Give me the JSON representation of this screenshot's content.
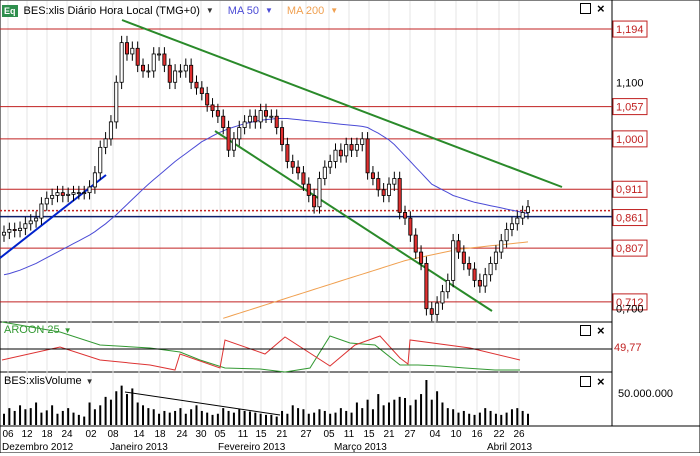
{
  "header": {
    "badge": "Eq",
    "symbol_title": "BES:xlis Diário Hora Local (TMG+0)",
    "ma50_label": "MA 50",
    "ma200_label": "MA 200",
    "dropdown_icon": "caret-down-icon",
    "window_icons": [
      "square-icon",
      "close-icon"
    ]
  },
  "colors": {
    "price_up": "#ffffff",
    "price_down": "#e03030",
    "ma50": "#4b4bd6",
    "ma200": "#f0a050",
    "support_line": "#0022cc",
    "trend_lines": "#2a8a2a",
    "hlines": "#c02020",
    "grid": "#e6e6e6",
    "aroon_up": "#339933",
    "aroon_down": "#dd3333",
    "volume": "#000000"
  },
  "price_axis": {
    "min": 0.68,
    "max": 1.21,
    "labels": [
      "1,194",
      "1,100",
      "1,057",
      "1,000",
      "0,911",
      "0,861",
      "0,807",
      "0,712",
      "0,700"
    ],
    "highlighted": [
      "1,194",
      "1,057",
      "1,000",
      "0,911",
      "0,861",
      "0,807",
      "0,712"
    ]
  },
  "horizontal_levels": [
    1.194,
    1.057,
    1.0,
    0.911,
    0.807,
    0.712
  ],
  "current_price_level": 0.868,
  "aroon": {
    "label": "AROON 25",
    "value_label": "49,77"
  },
  "volume_panel": {
    "label": "BES:xlisVolume",
    "axis_label": "50.000.000"
  },
  "x_axis": {
    "day_labels": [
      "06",
      "12",
      "18",
      "24",
      "02",
      "08",
      "14",
      "18",
      "24",
      "30",
      "05",
      "11",
      "15",
      "21",
      "27",
      "05",
      "11",
      "15",
      "21",
      "27",
      "04",
      "10",
      "16",
      "22",
      "26"
    ],
    "month_labels": [
      "Dezembro 2012",
      "Janeiro 2013",
      "Fevereiro 2013",
      "Março 2013",
      "Abril 2013"
    ]
  },
  "chart_data": {
    "type": "candlestick",
    "title": "BES:xlis Diário Hora Local (TMG+0)",
    "x": [
      "2012-12-03",
      "2012-12-04",
      "2012-12-05",
      "2012-12-06",
      "2012-12-07",
      "2012-12-10",
      "2012-12-11",
      "2012-12-12",
      "2012-12-13",
      "2012-12-14",
      "2012-12-17",
      "2012-12-18",
      "2012-12-19",
      "2012-12-20",
      "2012-12-21",
      "2012-12-24",
      "2012-12-27",
      "2012-12-28",
      "2013-01-02",
      "2013-01-03",
      "2013-01-04",
      "2013-01-07",
      "2013-01-08",
      "2013-01-09",
      "2013-01-10",
      "2013-01-11",
      "2013-01-14",
      "2013-01-15",
      "2013-01-16",
      "2013-01-17",
      "2013-01-18",
      "2013-01-21",
      "2013-01-22",
      "2013-01-23",
      "2013-01-24",
      "2013-01-25",
      "2013-01-28",
      "2013-01-29",
      "2013-01-30",
      "2013-01-31",
      "2013-02-01",
      "2013-02-04",
      "2013-02-05",
      "2013-02-06",
      "2013-02-07",
      "2013-02-08",
      "2013-02-11",
      "2013-02-12",
      "2013-02-13",
      "2013-02-14",
      "2013-02-15",
      "2013-02-18",
      "2013-02-19",
      "2013-02-20",
      "2013-02-21",
      "2013-02-22",
      "2013-02-25",
      "2013-02-26",
      "2013-02-27",
      "2013-02-28",
      "2013-03-01",
      "2013-03-04",
      "2013-03-05",
      "2013-03-06",
      "2013-03-07",
      "2013-03-08",
      "2013-03-11",
      "2013-03-12",
      "2013-03-13",
      "2013-03-14",
      "2013-03-15",
      "2013-03-18",
      "2013-03-19",
      "2013-03-20",
      "2013-03-21",
      "2013-03-22",
      "2013-03-25",
      "2013-03-26",
      "2013-03-27",
      "2013-03-28",
      "2013-04-02",
      "2013-04-03",
      "2013-04-04",
      "2013-04-05",
      "2013-04-08",
      "2013-04-09",
      "2013-04-10",
      "2013-04-11",
      "2013-04-12",
      "2013-04-15",
      "2013-04-16",
      "2013-04-17",
      "2013-04-18",
      "2013-04-19",
      "2013-04-22",
      "2013-04-23",
      "2013-04-24",
      "2013-04-25",
      "2013-04-26"
    ],
    "close": [
      0.835,
      0.84,
      0.838,
      0.842,
      0.85,
      0.855,
      0.86,
      0.885,
      0.895,
      0.9,
      0.905,
      0.9,
      0.902,
      0.905,
      0.905,
      0.905,
      0.915,
      0.94,
      0.985,
      1.0,
      1.03,
      1.1,
      1.17,
      1.15,
      1.16,
      1.13,
      1.12,
      1.12,
      1.15,
      1.15,
      1.13,
      1.1,
      1.12,
      1.12,
      1.13,
      1.1,
      1.09,
      1.08,
      1.06,
      1.05,
      1.04,
      1.02,
      0.98,
      1.0,
      1.02,
      1.03,
      1.04,
      1.03,
      1.05,
      1.04,
      1.04,
      1.02,
      0.99,
      0.96,
      0.95,
      0.94,
      0.92,
      0.9,
      0.88,
      0.93,
      0.95,
      0.96,
      0.98,
      0.97,
      0.99,
      0.98,
      0.99,
      1.0,
      0.94,
      0.93,
      0.91,
      0.9,
      0.92,
      0.93,
      0.87,
      0.86,
      0.83,
      0.8,
      0.78,
      0.7,
      0.69,
      0.71,
      0.73,
      0.75,
      0.82,
      0.8,
      0.78,
      0.77,
      0.75,
      0.74,
      0.76,
      0.78,
      0.8,
      0.82,
      0.84,
      0.85,
      0.86,
      0.87,
      0.88
    ],
    "ma50": [
      0.76,
      0.762,
      0.765,
      0.768,
      0.772,
      0.776,
      0.78,
      0.785,
      0.79,
      0.795,
      0.8,
      0.805,
      0.81,
      0.815,
      0.82,
      0.825,
      0.83,
      0.836,
      0.843,
      0.85,
      0.858,
      0.866,
      0.875,
      0.884,
      0.893,
      0.902,
      0.911,
      0.92,
      0.928,
      0.936,
      0.944,
      0.952,
      0.96,
      0.967,
      0.974,
      0.981,
      0.988,
      0.995,
      1.0,
      1.005,
      1.01,
      1.014,
      1.018,
      1.021,
      1.024,
      1.027,
      1.029,
      1.031,
      1.033,
      1.034,
      1.035,
      1.036,
      1.036,
      1.036,
      1.035,
      1.034,
      1.033,
      1.032,
      1.031,
      1.03,
      1.029,
      1.028,
      1.027,
      1.026,
      1.025,
      1.024,
      1.023,
      1.022,
      1.02,
      1.015,
      1.01,
      1.004,
      0.998,
      0.99,
      0.98,
      0.97,
      0.96,
      0.95,
      0.94,
      0.93,
      0.92,
      0.915,
      0.91,
      0.905,
      0.9,
      0.897,
      0.894,
      0.891,
      0.888,
      0.886,
      0.884,
      0.882,
      0.88,
      0.878,
      0.876,
      0.874,
      0.872,
      0.87,
      0.868
    ],
    "ma200": [
      null,
      null,
      null,
      null,
      null,
      null,
      null,
      null,
      null,
      null,
      null,
      null,
      null,
      null,
      null,
      null,
      null,
      null,
      null,
      null,
      null,
      null,
      null,
      null,
      null,
      null,
      null,
      null,
      null,
      null,
      null,
      null,
      null,
      null,
      null,
      null,
      null,
      null,
      null,
      null,
      null,
      0.683,
      0.686,
      0.689,
      0.692,
      0.695,
      0.698,
      0.701,
      0.704,
      0.707,
      0.71,
      0.713,
      0.716,
      0.719,
      0.722,
      0.725,
      0.728,
      0.731,
      0.734,
      0.737,
      0.74,
      0.743,
      0.746,
      0.749,
      0.752,
      0.755,
      0.758,
      0.761,
      0.764,
      0.767,
      0.77,
      0.773,
      0.776,
      0.779,
      0.782,
      0.785,
      0.787,
      0.789,
      0.791,
      0.793,
      0.795,
      0.797,
      0.799,
      0.801,
      0.803,
      0.805,
      0.806,
      0.807,
      0.808,
      0.809,
      0.81,
      0.811,
      0.812,
      0.813,
      0.814,
      0.815,
      0.816,
      0.817,
      0.818
    ],
    "volume": [
      20,
      30,
      25,
      35,
      28,
      30,
      40,
      22,
      26,
      35,
      20,
      25,
      30,
      22,
      18,
      15,
      40,
      28,
      35,
      50,
      45,
      60,
      70,
      55,
      65,
      40,
      35,
      30,
      28,
      20,
      25,
      22,
      25,
      30,
      20,
      28,
      35,
      25,
      22,
      18,
      20,
      30,
      25,
      22,
      28,
      25,
      24,
      22,
      20,
      18,
      18,
      15,
      25,
      20,
      35,
      30,
      28,
      20,
      22,
      28,
      25,
      20,
      22,
      30,
      25,
      22,
      40,
      30,
      45,
      28,
      55,
      35,
      40,
      45,
      50,
      48,
      35,
      45,
      55,
      80,
      45,
      60,
      40,
      30,
      28,
      22,
      25,
      20,
      18,
      22,
      30,
      25,
      20,
      18,
      22,
      28,
      30,
      25,
      20
    ],
    "ylim": [
      0.68,
      1.21
    ],
    "annotations": {
      "horizontal_levels": [
        1.194,
        1.057,
        1.0,
        0.911,
        0.807,
        0.712
      ],
      "current_price": 0.868
    }
  }
}
